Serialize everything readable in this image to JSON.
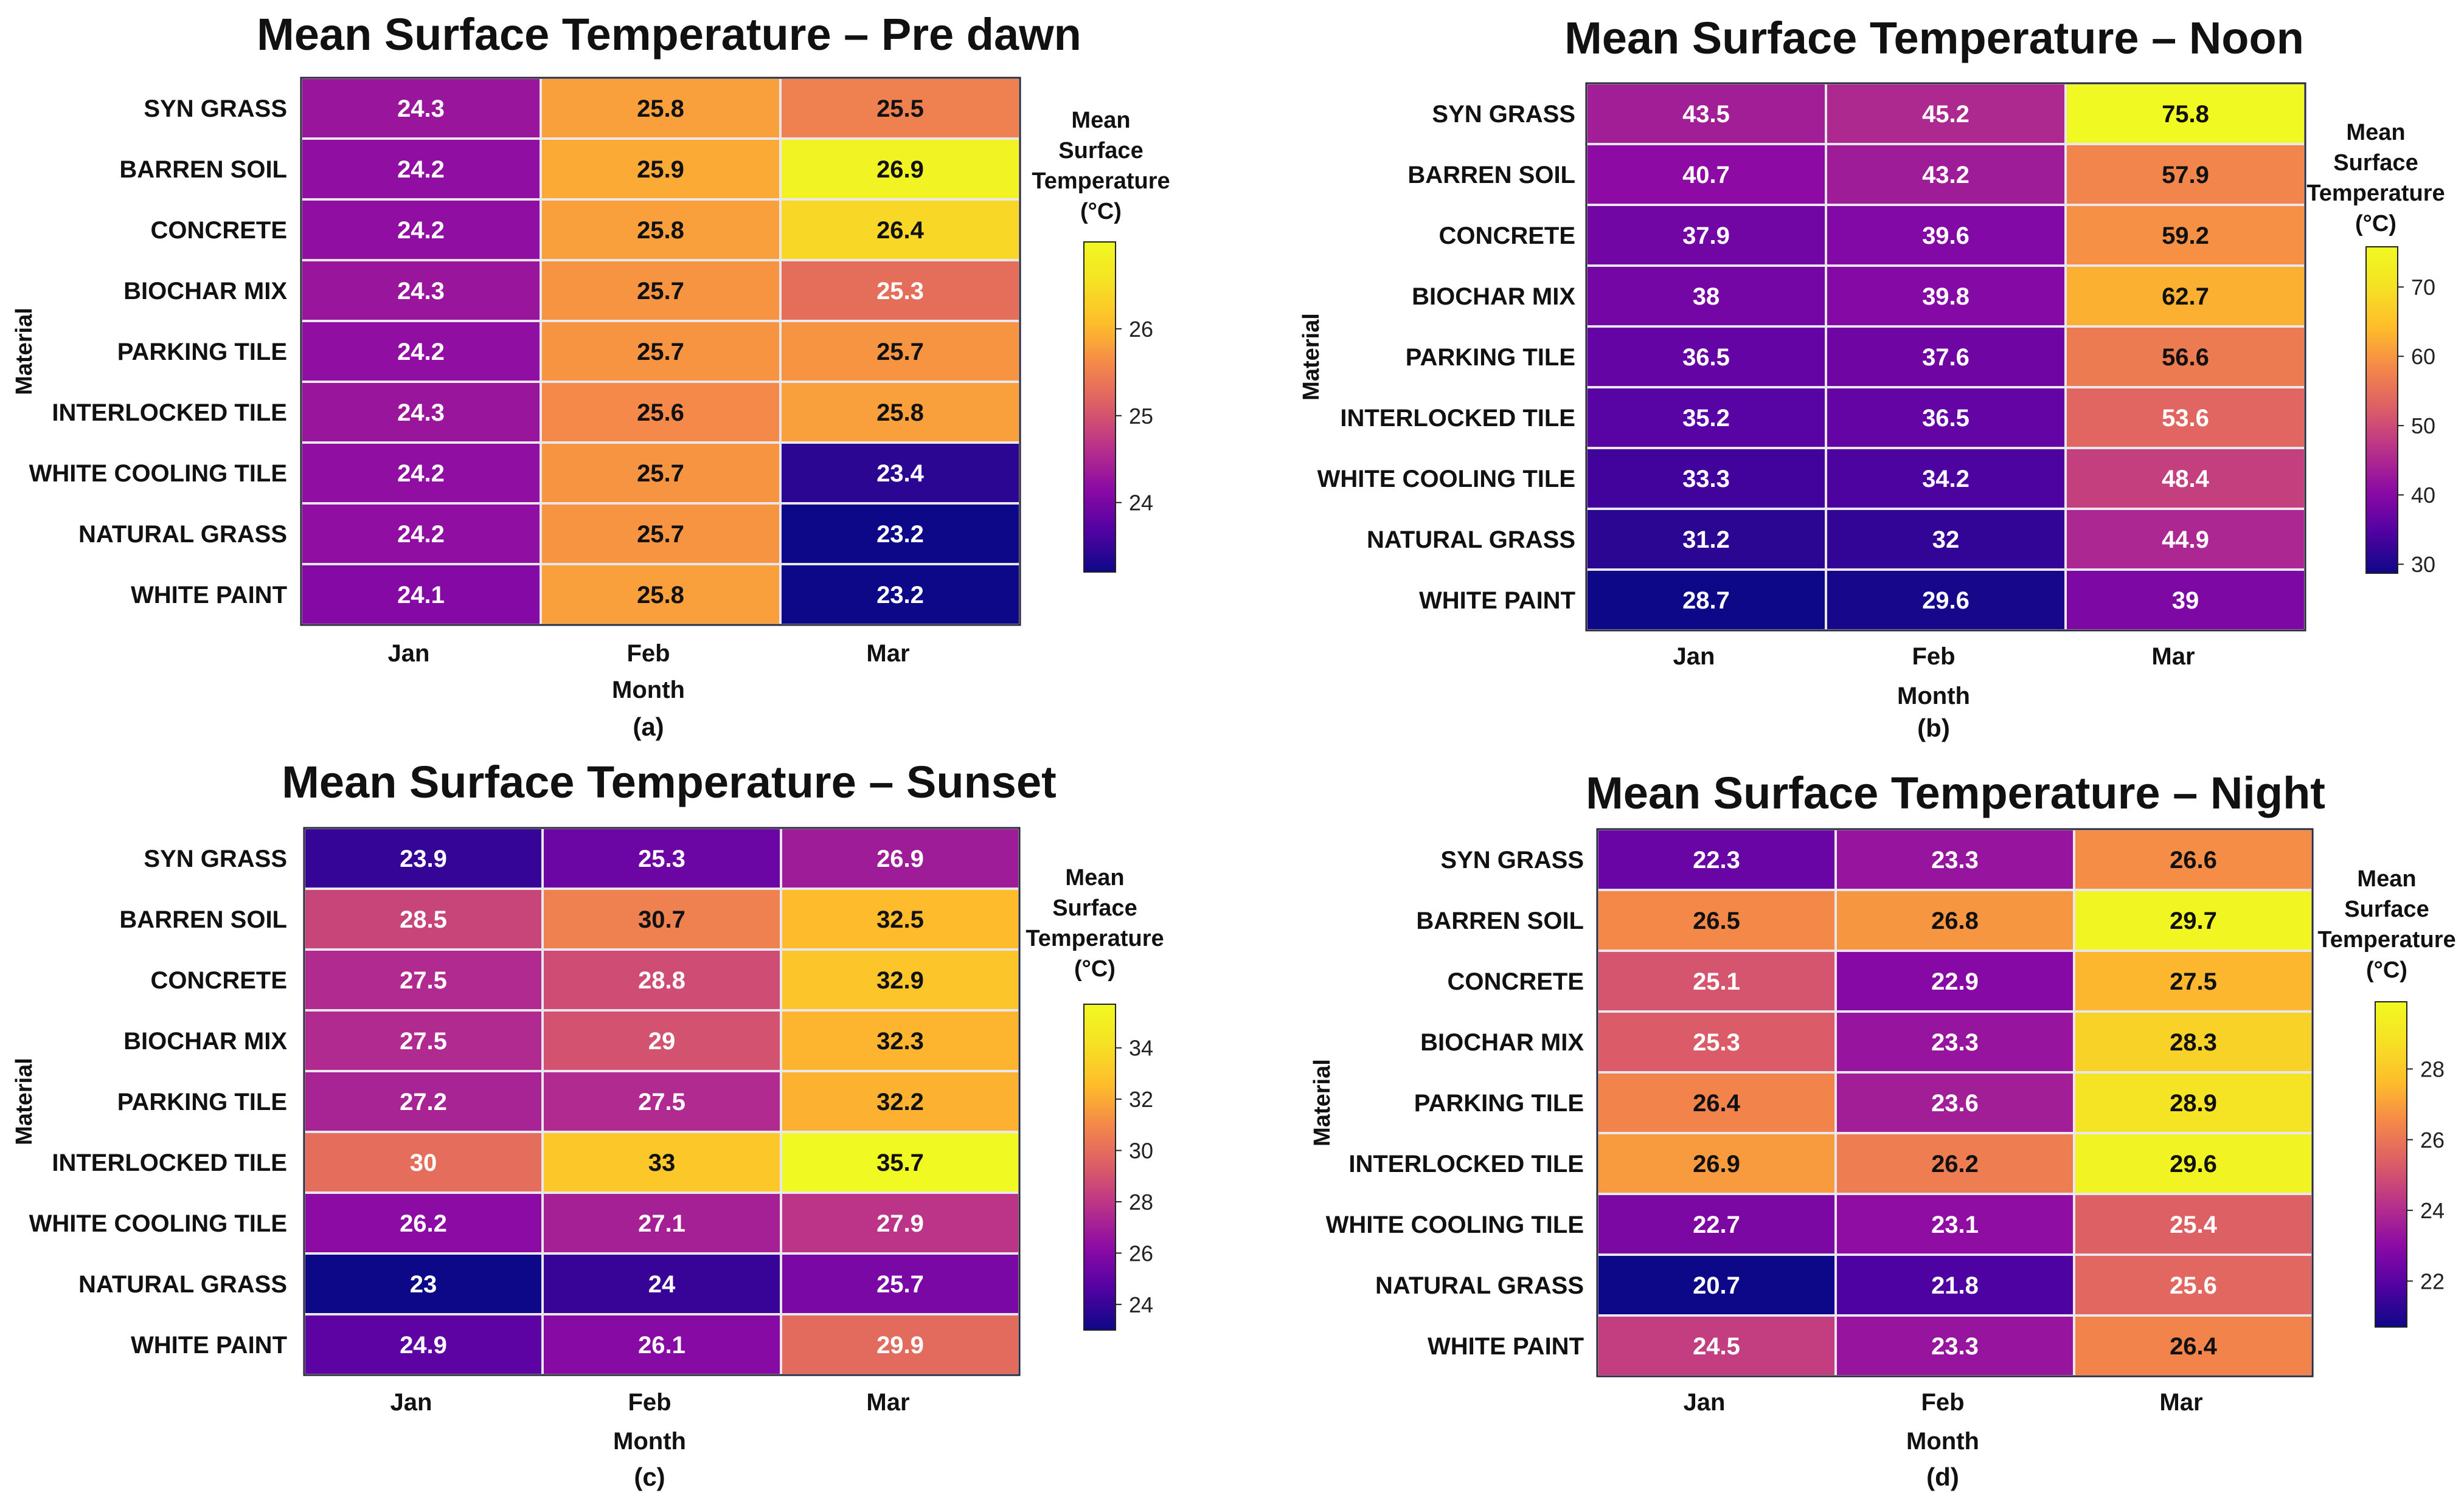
{
  "chart_data": [
    {
      "type": "heatmap",
      "title": "Mean Surface Temperature – Pre dawn",
      "panel_label": "(a)",
      "xlabel": "Month",
      "ylabel": "Material",
      "colorbar_title": [
        "Mean",
        "Surface",
        "Temperature",
        "(°C)"
      ],
      "colorbar_ticks": [
        "24",
        "25",
        "26"
      ],
      "colorbar_tick_values": [
        24,
        25,
        26
      ],
      "color_range": [
        23.2,
        27.0
      ],
      "columns": [
        "Jan",
        "Feb",
        "Mar"
      ],
      "rows": [
        "SYN GRASS",
        "BARREN SOIL",
        "CONCRETE",
        "BIOCHAR MIX",
        "PARKING TILE",
        "INTERLOCKED TILE",
        "WHITE COOLING TILE",
        "NATURAL GRASS",
        "WHITE PAINT"
      ],
      "values": [
        [
          "24.3",
          "25.8",
          "25.5"
        ],
        [
          "24.2",
          "25.9",
          "26.9"
        ],
        [
          "24.2",
          "25.8",
          "26.4"
        ],
        [
          "24.3",
          "25.7",
          "25.3"
        ],
        [
          "24.2",
          "25.7",
          "25.7"
        ],
        [
          "24.3",
          "25.6",
          "25.8"
        ],
        [
          "24.2",
          "25.7",
          "23.4"
        ],
        [
          "24.2",
          "25.7",
          "23.2"
        ],
        [
          "24.1",
          "25.8",
          "23.2"
        ]
      ]
    },
    {
      "type": "heatmap",
      "title": "Mean Surface Temperature – Noon",
      "panel_label": "(b)",
      "xlabel": "Month",
      "ylabel": "Material",
      "colorbar_title": [
        "Mean",
        "Surface",
        "Temperature",
        "(°C)"
      ],
      "colorbar_ticks": [
        "30",
        "40",
        "50",
        "60",
        "70"
      ],
      "colorbar_tick_values": [
        30,
        40,
        50,
        60,
        70
      ],
      "color_range": [
        28.7,
        75.8
      ],
      "columns": [
        "Jan",
        "Feb",
        "Mar"
      ],
      "rows": [
        "SYN GRASS",
        "BARREN SOIL",
        "CONCRETE",
        "BIOCHAR MIX",
        "PARKING TILE",
        "INTERLOCKED TILE",
        "WHITE COOLING TILE",
        "NATURAL GRASS",
        "WHITE PAINT"
      ],
      "values": [
        [
          "43.5",
          "45.2",
          "75.8"
        ],
        [
          "40.7",
          "43.2",
          "57.9"
        ],
        [
          "37.9",
          "39.6",
          "59.2"
        ],
        [
          "38",
          "39.8",
          "62.7"
        ],
        [
          "36.5",
          "37.6",
          "56.6"
        ],
        [
          "35.2",
          "36.5",
          "53.6"
        ],
        [
          "33.3",
          "34.2",
          "48.4"
        ],
        [
          "31.2",
          "32",
          "44.9"
        ],
        [
          "28.7",
          "29.6",
          "39"
        ]
      ]
    },
    {
      "type": "heatmap",
      "title": "Mean Surface Temperature – Sunset",
      "panel_label": "(c)",
      "xlabel": "Month",
      "ylabel": "Material",
      "colorbar_title": [
        "Mean",
        "Surface",
        "Temperature",
        "(°C)"
      ],
      "colorbar_ticks": [
        "24",
        "26",
        "28",
        "30",
        "32",
        "34"
      ],
      "colorbar_tick_values": [
        24,
        26,
        28,
        30,
        32,
        34
      ],
      "color_range": [
        23.0,
        35.7
      ],
      "columns": [
        "Jan",
        "Feb",
        "Mar"
      ],
      "rows": [
        "SYN GRASS",
        "BARREN SOIL",
        "CONCRETE",
        "BIOCHAR MIX",
        "PARKING TILE",
        "INTERLOCKED TILE",
        "WHITE COOLING TILE",
        "NATURAL GRASS",
        "WHITE PAINT"
      ],
      "values": [
        [
          "23.9",
          "25.3",
          "26.9"
        ],
        [
          "28.5",
          "30.7",
          "32.5"
        ],
        [
          "27.5",
          "28.8",
          "32.9"
        ],
        [
          "27.5",
          "29",
          "32.3"
        ],
        [
          "27.2",
          "27.5",
          "32.2"
        ],
        [
          "30",
          "33",
          "35.7"
        ],
        [
          "26.2",
          "27.1",
          "27.9"
        ],
        [
          "23",
          "24",
          "25.7"
        ],
        [
          "24.9",
          "26.1",
          "29.9"
        ]
      ]
    },
    {
      "type": "heatmap",
      "title": "Mean Surface Temperature – Night",
      "panel_label": "(d)",
      "xlabel": "Month",
      "ylabel": "Material",
      "colorbar_title": [
        "Mean",
        "Surface",
        "Temperature",
        "(°C)"
      ],
      "colorbar_ticks": [
        "22",
        "24",
        "26",
        "28"
      ],
      "colorbar_tick_values": [
        22,
        24,
        26,
        28
      ],
      "color_range": [
        20.7,
        29.9
      ],
      "columns": [
        "Jan",
        "Feb",
        "Mar"
      ],
      "rows": [
        "SYN GRASS",
        "BARREN SOIL",
        "CONCRETE",
        "BIOCHAR MIX",
        "PARKING TILE",
        "INTERLOCKED TILE",
        "WHITE COOLING TILE",
        "NATURAL GRASS",
        "WHITE PAINT"
      ],
      "values": [
        [
          "22.3",
          "23.3",
          "26.6"
        ],
        [
          "26.5",
          "26.8",
          "29.7"
        ],
        [
          "25.1",
          "22.9",
          "27.5"
        ],
        [
          "25.3",
          "23.3",
          "28.3"
        ],
        [
          "26.4",
          "23.6",
          "28.9"
        ],
        [
          "26.9",
          "26.2",
          "29.6"
        ],
        [
          "22.7",
          "23.1",
          "25.4"
        ],
        [
          "20.7",
          "21.8",
          "25.6"
        ],
        [
          "24.5",
          "23.3",
          "26.4"
        ]
      ]
    }
  ]
}
